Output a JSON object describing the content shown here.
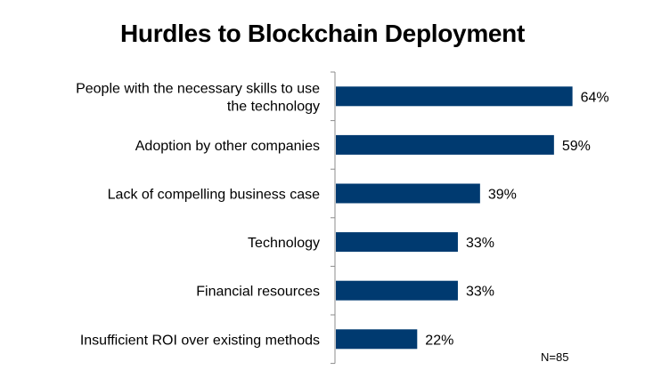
{
  "chart_data": {
    "type": "bar",
    "orientation": "horizontal",
    "title": "Hurdles to Blockchain Deployment",
    "xlabel": "",
    "ylabel": "",
    "xlim": [
      0,
      100
    ],
    "grid": false,
    "bar_color": "#003a70",
    "categories": [
      [
        "People with the necessary skills to use",
        "the technology"
      ],
      [
        "Adoption by other companies"
      ],
      [
        "Lack of compelling business case"
      ],
      [
        "Technology"
      ],
      [
        "Financial resources"
      ],
      [
        "Insufficient ROI over existing methods"
      ]
    ],
    "values": [
      64,
      59,
      39,
      33,
      33,
      22
    ],
    "value_labels": [
      "64%",
      "59%",
      "39%",
      "33%",
      "33%",
      "22%"
    ],
    "annotation": "N=85"
  }
}
